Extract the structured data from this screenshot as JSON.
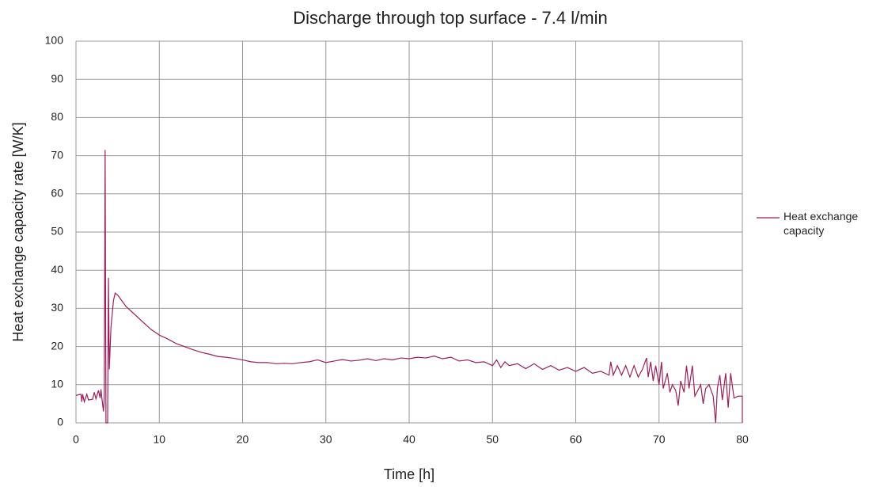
{
  "chart_data": {
    "type": "line",
    "title": "Discharge through top surface - 7.4 l/min",
    "x_label": "Time [h]",
    "y_label": "Heat exchange capacity rate [W/K]",
    "xlim": [
      0,
      80
    ],
    "xticks": [
      0,
      10,
      20,
      30,
      40,
      50,
      60,
      70,
      80
    ],
    "ylim": [
      0,
      100
    ],
    "yticks": [
      0,
      10,
      20,
      30,
      40,
      50,
      60,
      70,
      80,
      90,
      100
    ],
    "grid": true,
    "legend": "right",
    "x": [
      0,
      0.6,
      0.7,
      0.8,
      1,
      1.3,
      1.5,
      2,
      2.2,
      2.4,
      2.7,
      2.9,
      3,
      3.1,
      3.3,
      3.4,
      3.5,
      3.6,
      3.8,
      3.9,
      4.0,
      4.2,
      4.5,
      4.7,
      5,
      5.5,
      6,
      7,
      8,
      9,
      10,
      11,
      12,
      13,
      14,
      15,
      16,
      17,
      18,
      19,
      20,
      21,
      22,
      23,
      24,
      25,
      26,
      27,
      28,
      29,
      30,
      31,
      32,
      33,
      34,
      35,
      36,
      37,
      38,
      39,
      40,
      41,
      42,
      43,
      44,
      45,
      46,
      47,
      48,
      49,
      50,
      50.5,
      51,
      51.5,
      52,
      53,
      54,
      55,
      56,
      57,
      58,
      59,
      60,
      61,
      62,
      63,
      64,
      64.2,
      64.5,
      65,
      65.5,
      66,
      66.5,
      67,
      67.5,
      68,
      68.5,
      68.7,
      69,
      69.3,
      69.6,
      70,
      70.3,
      70.5,
      71,
      71.3,
      71.6,
      72,
      72.3,
      72.6,
      73,
      73.3,
      73.6,
      74,
      74.3,
      75,
      75.3,
      75.6,
      76,
      76.5,
      76.8,
      77,
      77.3,
      77.6,
      78,
      78.3,
      78.6,
      79,
      79.5,
      80,
      80
    ],
    "series": [
      {
        "name": "Heat exchange capacity",
        "color": "#9b1f5c",
        "values": [
          7.2,
          7.5,
          5.5,
          7.5,
          5.5,
          7.5,
          6,
          6.2,
          8,
          6.3,
          8.5,
          6.5,
          8.8,
          6.6,
          3,
          7,
          71.5,
          0,
          0,
          38,
          14,
          25,
          32,
          34,
          33.5,
          32,
          30.5,
          28.5,
          26.5,
          24.5,
          23,
          22,
          20.8,
          20,
          19.2,
          18.5,
          18,
          17.4,
          17.2,
          16.9,
          16.5,
          16,
          15.8,
          15.8,
          15.5,
          15.6,
          15.5,
          15.8,
          16,
          16.5,
          15.8,
          16.2,
          16.6,
          16.2,
          16.4,
          16.8,
          16.3,
          16.8,
          16.5,
          17,
          16.8,
          17.2,
          17,
          17.5,
          16.8,
          17.2,
          16.2,
          16.5,
          15.8,
          16,
          15,
          16.5,
          14.5,
          16,
          15,
          15.5,
          14.2,
          15.5,
          14,
          15,
          13.8,
          14.5,
          13.5,
          14.5,
          13,
          13.5,
          12.5,
          16,
          12.5,
          15,
          12.5,
          15,
          12,
          15,
          12,
          14,
          17,
          12,
          16,
          11,
          15,
          10,
          16,
          9,
          13,
          8,
          10,
          8.5,
          4.5,
          11,
          8,
          15,
          9,
          15,
          7,
          10,
          5,
          9,
          10,
          7,
          0,
          9,
          12.5,
          6,
          13,
          4,
          13,
          6.5,
          7,
          7,
          0
        ]
      }
    ]
  }
}
